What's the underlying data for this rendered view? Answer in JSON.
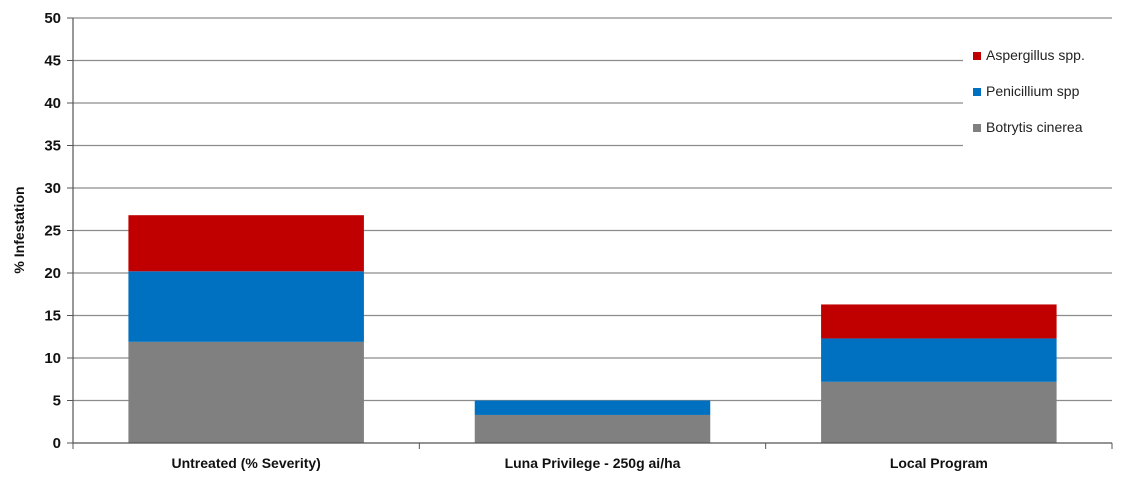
{
  "chart_data": {
    "type": "bar",
    "stacked": true,
    "title": "",
    "xlabel": "",
    "ylabel": "% Infestation",
    "ylim": [
      0,
      50
    ],
    "yticks": [
      0,
      5,
      10,
      15,
      20,
      25,
      30,
      35,
      40,
      45,
      50
    ],
    "grid": true,
    "legend_position": "top-right",
    "categories": [
      "Untreated (% Severity)",
      "Luna Privilege - 250g ai/ha",
      "Local Program"
    ],
    "series": [
      {
        "name": "Botrytis cinerea",
        "color": "#808080",
        "values": [
          11.9,
          3.3,
          7.2
        ]
      },
      {
        "name": "Penicillium spp",
        "color": "#0070c0",
        "values": [
          8.3,
          1.7,
          5.1
        ]
      },
      {
        "name": "Aspergillus spp.",
        "color": "#c00000",
        "values": [
          6.6,
          0.0,
          4.0
        ]
      }
    ],
    "legend_order": [
      "Aspergillus spp.",
      "Penicillium spp",
      "Botrytis cinerea"
    ]
  }
}
